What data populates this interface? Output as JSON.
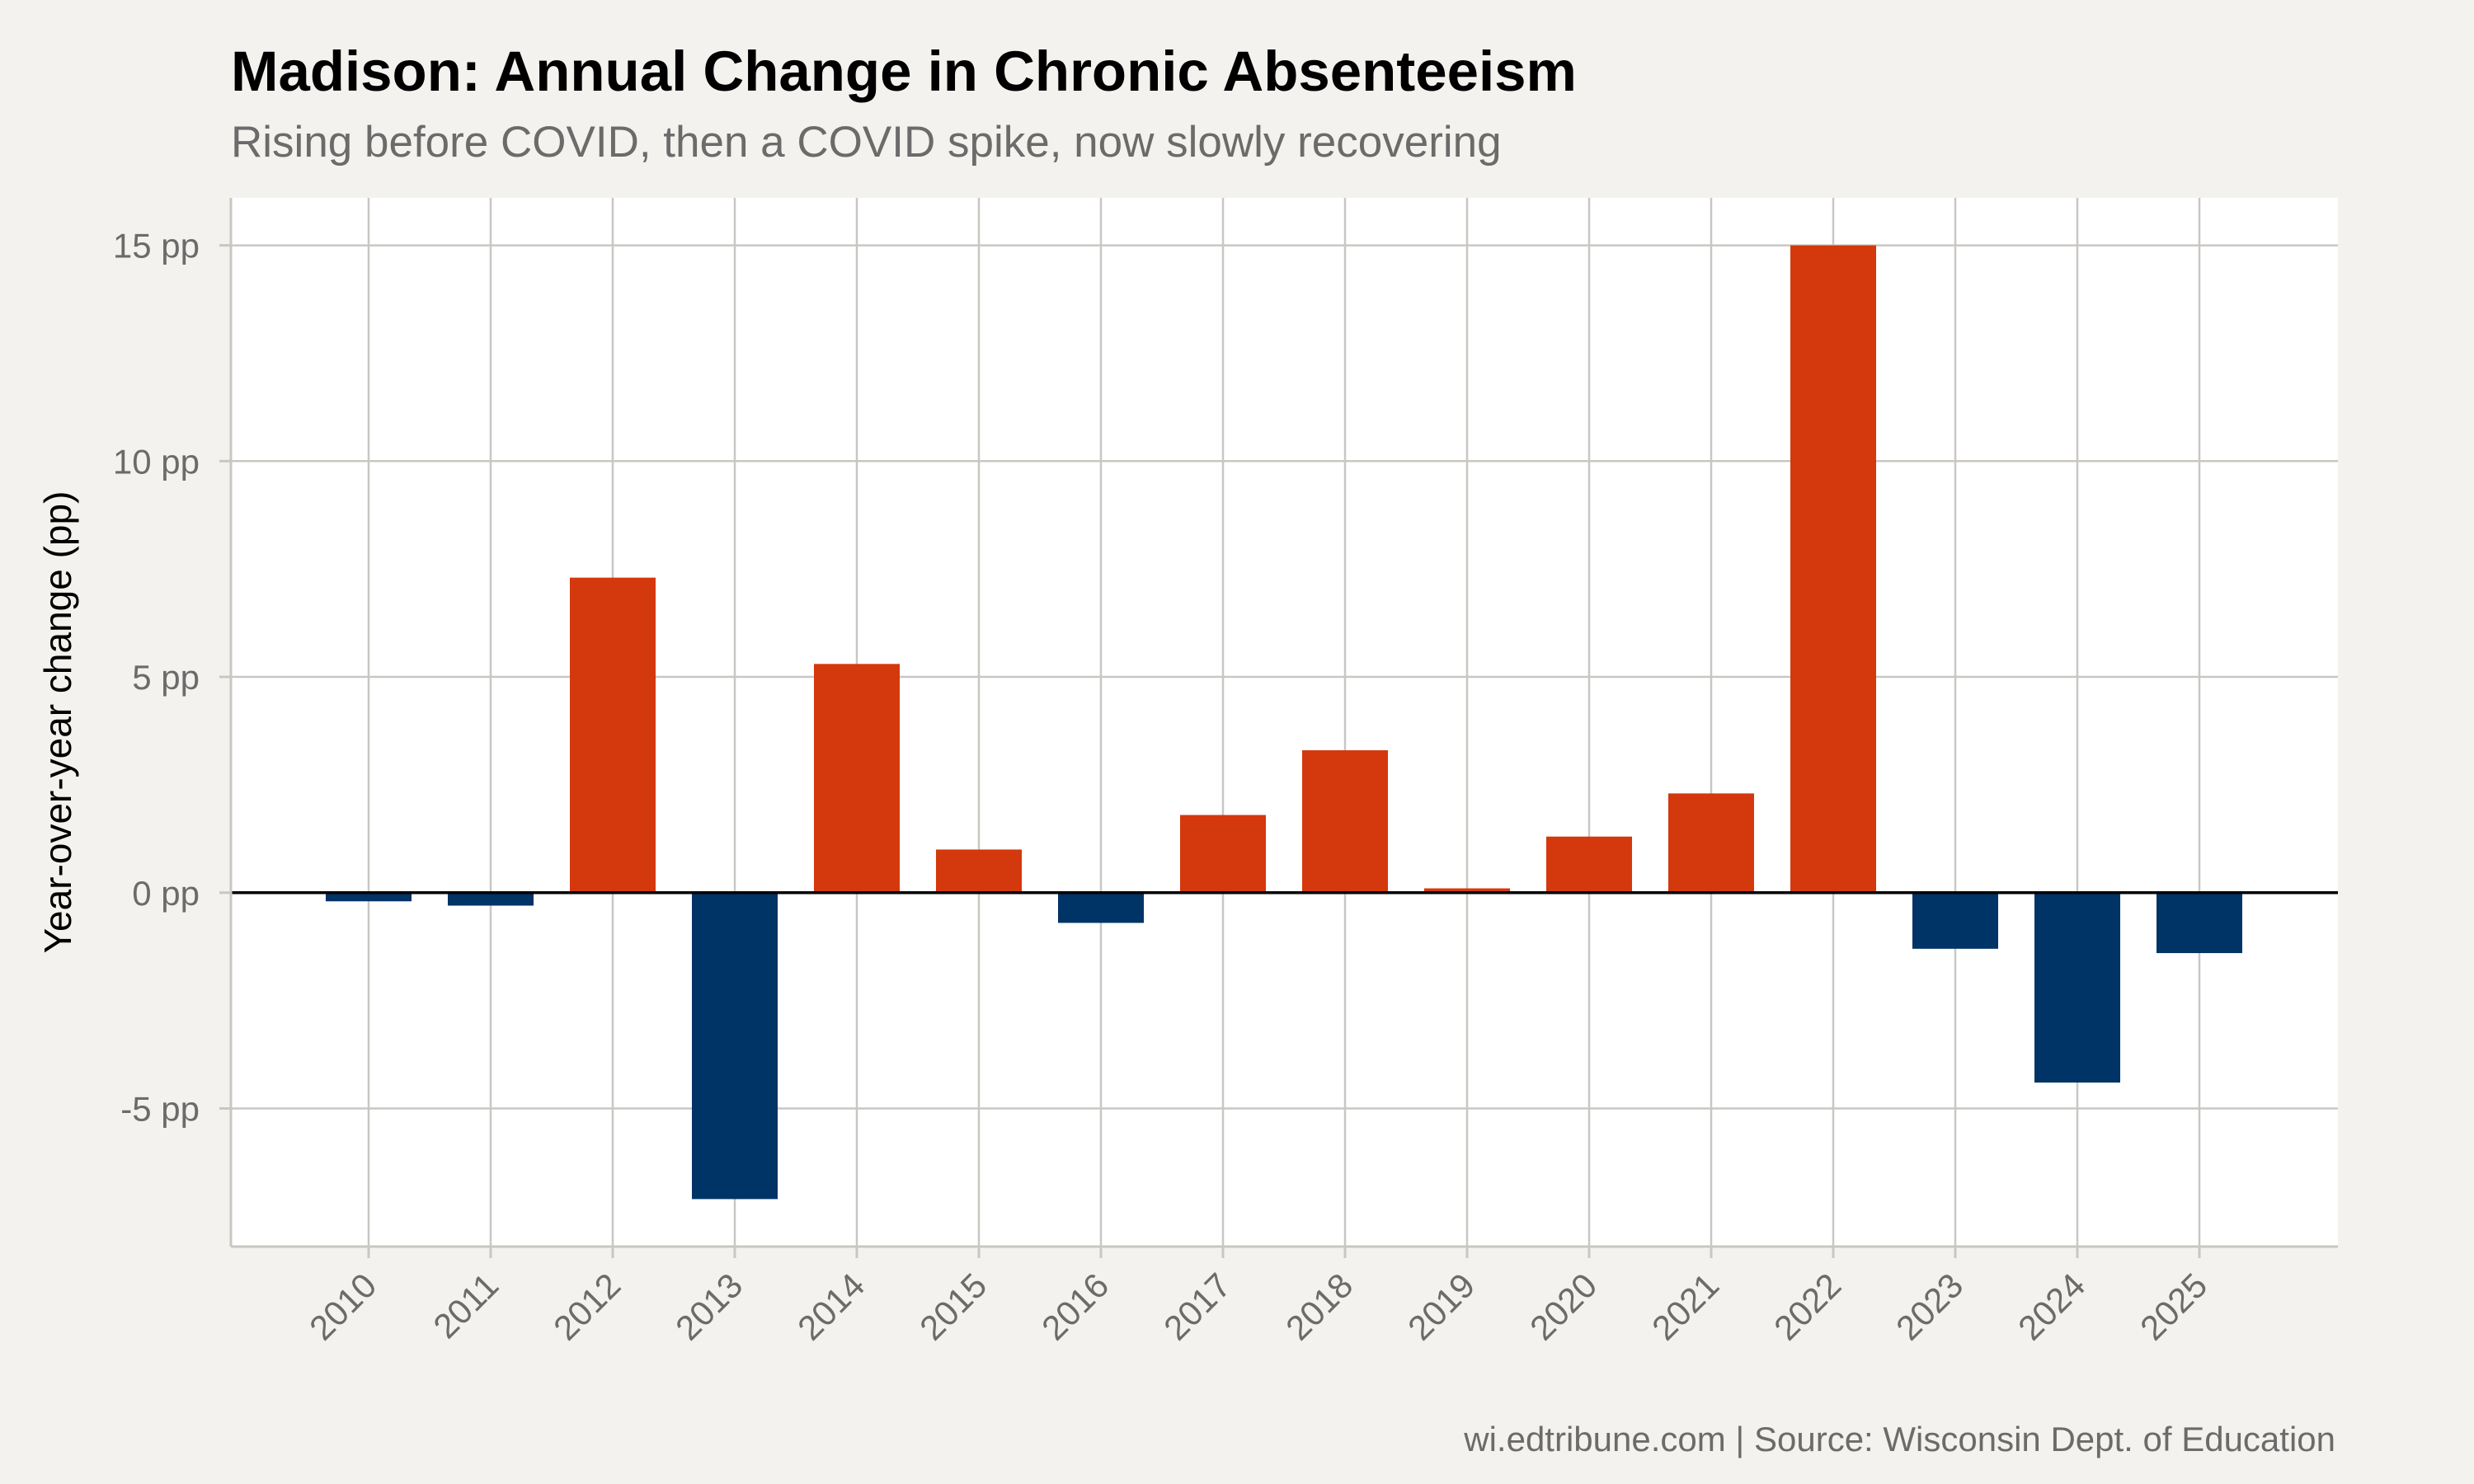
{
  "chart_data": {
    "type": "bar",
    "title": "Madison: Annual Change in Chronic Absenteeism",
    "subtitle": "Rising before COVID, then a COVID spike, now slowly recovering",
    "xlabel": "",
    "ylabel": "Year-over-year change (pp)",
    "caption": "wi.edtribune.com | Source: Wisconsin Dept. of Education",
    "categories": [
      "2010",
      "2011",
      "2012",
      "2013",
      "2014",
      "2015",
      "2016",
      "2017",
      "2018",
      "2019",
      "2020",
      "2021",
      "2022",
      "2023",
      "2024",
      "2025"
    ],
    "values": [
      -0.2,
      -0.3,
      7.3,
      -7.1,
      5.3,
      1.0,
      -0.7,
      1.8,
      3.3,
      0.1,
      1.3,
      2.3,
      15.0,
      -1.3,
      -4.4,
      -1.4
    ],
    "ylim": [
      -8.2,
      16.1
    ],
    "y_ticks": [
      -5,
      0,
      5,
      10,
      15
    ],
    "y_tick_labels": [
      "-5 pp",
      "0 pp",
      "5 pp",
      "10 pp",
      "15 pp"
    ],
    "grid": true,
    "legend": "none",
    "colors": {
      "positive": "#d4380d",
      "negative": "#003366",
      "grid": "#c9c7c2",
      "zero_line": "#000000",
      "panel": "#ffffff",
      "background": "#f4f2ee"
    }
  }
}
